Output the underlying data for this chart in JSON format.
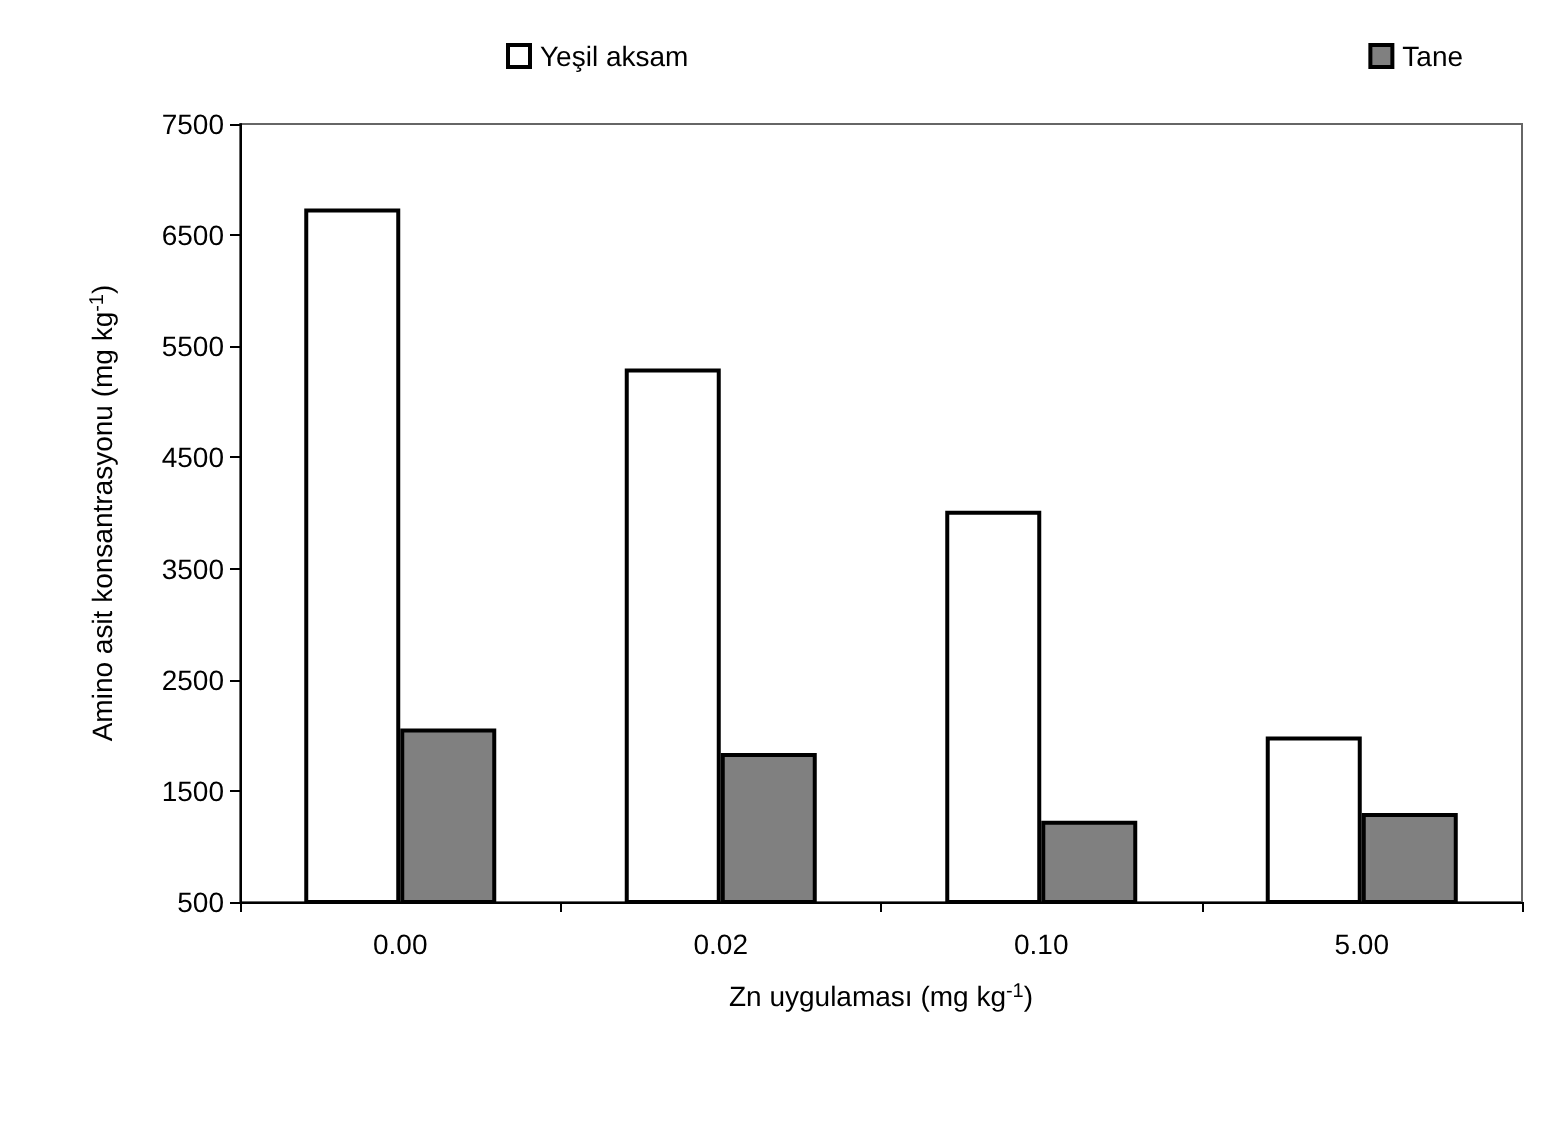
{
  "chart_data": {
    "type": "bar",
    "xlabel": "Zn uygulaması (mg kg$^{-1}$)",
    "ylabel": "Amino asit konsantrasyonu (mg kg$^{-1}$)",
    "categories": [
      "0.00",
      "0.02",
      "0.10",
      "5.00"
    ],
    "series": [
      {
        "name": "Yeşil aksam",
        "color": "#ffffff",
        "values": [
          6740,
          5300,
          4020,
          1990
        ]
      },
      {
        "name": "Tane",
        "color": "#808080",
        "values": [
          2060,
          1840,
          1230,
          1300
        ]
      }
    ],
    "ylim": [
      500,
      7500
    ],
    "yticks": [
      500,
      1500,
      2500,
      3500,
      4500,
      5500,
      6500,
      7500
    ],
    "grid": false,
    "legend": "top"
  }
}
